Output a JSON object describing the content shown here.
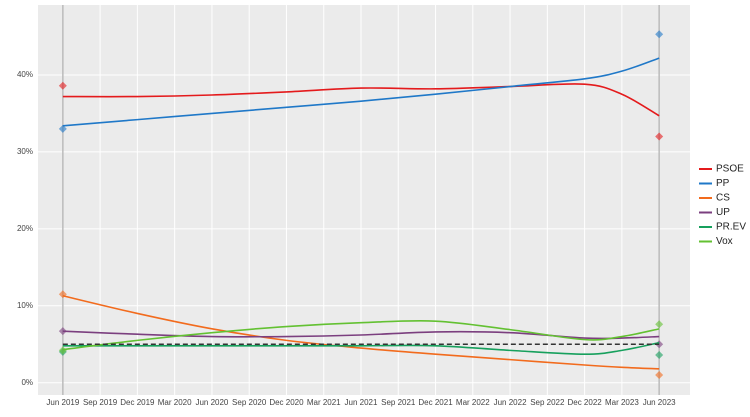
{
  "chart_data": {
    "type": "line",
    "x": [
      "2019-06",
      "2019-12",
      "2020-06",
      "2020-12",
      "2021-06",
      "2021-12",
      "2022-06",
      "2022-12",
      "2023-03",
      "2023-06"
    ],
    "series": [
      {
        "name": "PSOE",
        "color": "#e41a1c",
        "values": [
          37.2,
          37.2,
          37.4,
          37.8,
          38.3,
          38.2,
          38.5,
          38.8,
          37.5,
          34.7
        ],
        "results": [
          38.6,
          32.0
        ]
      },
      {
        "name": "PP",
        "color": "#1f78c8",
        "values": [
          33.4,
          34.2,
          35.0,
          35.8,
          36.6,
          37.5,
          38.5,
          39.5,
          40.5,
          42.2
        ],
        "results": [
          33.0,
          45.3
        ]
      },
      {
        "name": "CS",
        "color": "#f26b1d",
        "values": [
          11.3,
          9.0,
          7.0,
          5.5,
          4.5,
          3.7,
          3.0,
          2.3,
          2.0,
          1.8
        ],
        "results": [
          11.5,
          1.0
        ]
      },
      {
        "name": "UP",
        "color": "#7b3f7f",
        "values": [
          6.7,
          6.3,
          6.0,
          6.0,
          6.2,
          6.6,
          6.5,
          5.8,
          5.8,
          6.0
        ],
        "results": [
          6.7,
          5.0
        ]
      },
      {
        "name": "PR.EV",
        "color": "#17a05d",
        "values": [
          4.8,
          4.8,
          4.8,
          4.8,
          4.8,
          4.8,
          4.2,
          3.7,
          4.2,
          5.2
        ],
        "results": [
          4.0,
          3.6
        ]
      },
      {
        "name": "Vox",
        "color": "#63c132",
        "values": [
          4.3,
          5.5,
          6.5,
          7.3,
          7.8,
          8.0,
          6.9,
          5.6,
          6.0,
          7.0
        ],
        "results": [
          4.2,
          7.6
        ]
      }
    ],
    "results_x": [
      "2019-06",
      "2023-06"
    ],
    "reference_line": 5,
    "xlim": [
      "2019-04",
      "2023-08"
    ],
    "xticks": [
      {
        "value": "2019-06",
        "label": "Jun 2019"
      },
      {
        "value": "2019-09",
        "label": "Sep 2019"
      },
      {
        "value": "2019-12",
        "label": "Dec 2019"
      },
      {
        "value": "2020-03",
        "label": "Mar 2020"
      },
      {
        "value": "2020-06",
        "label": "Jun 2020"
      },
      {
        "value": "2020-09",
        "label": "Sep 2020"
      },
      {
        "value": "2020-12",
        "label": "Dec 2020"
      },
      {
        "value": "2021-03",
        "label": "Mar 2021"
      },
      {
        "value": "2021-06",
        "label": "Jun 2021"
      },
      {
        "value": "2021-09",
        "label": "Sep 2021"
      },
      {
        "value": "2021-12",
        "label": "Dec 2021"
      },
      {
        "value": "2022-03",
        "label": "Mar 2022"
      },
      {
        "value": "2022-06",
        "label": "Jun 2022"
      },
      {
        "value": "2022-09",
        "label": "Sep 2022"
      },
      {
        "value": "2022-12",
        "label": "Dec 2022"
      },
      {
        "value": "2023-03",
        "label": "Mar 2023"
      },
      {
        "value": "2023-06",
        "label": "Jun 2023"
      }
    ],
    "ylim": [
      -1.6,
      49.1
    ],
    "yticks": [
      {
        "value": 0,
        "label": "0%"
      },
      {
        "value": 10,
        "label": "10%"
      },
      {
        "value": 20,
        "label": "20%"
      },
      {
        "value": 30,
        "label": "30%"
      },
      {
        "value": 40,
        "label": "40%"
      }
    ],
    "grid": true,
    "legend": "right"
  }
}
